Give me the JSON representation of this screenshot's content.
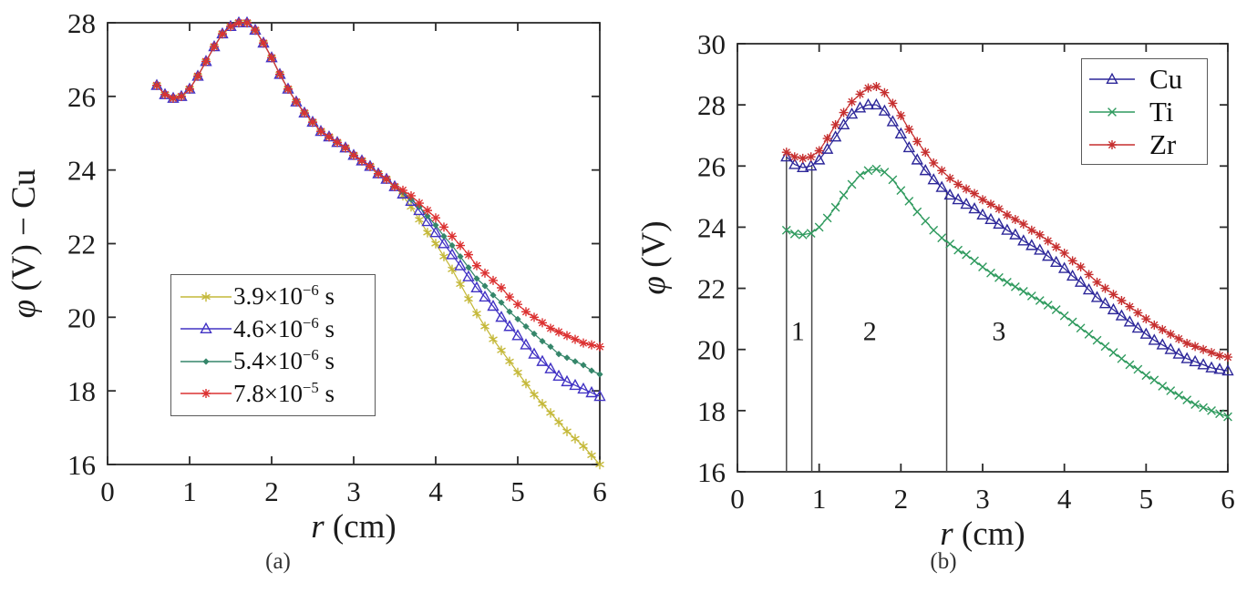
{
  "figure": {
    "captions": {
      "a": "(a)",
      "b": "(b)"
    }
  },
  "chart_data": [
    {
      "panel": "a",
      "type": "line",
      "title": "",
      "xlabel": {
        "var": "r",
        "rest": " (cm)"
      },
      "ylabel": {
        "var": "φ",
        "rest": " (V) − Cu"
      },
      "xlim": [
        0,
        6
      ],
      "ylim": [
        16,
        28
      ],
      "xticks": [
        0,
        1,
        2,
        3,
        4,
        5,
        6
      ],
      "yticks": [
        16,
        18,
        20,
        22,
        24,
        26,
        28
      ],
      "grid": false,
      "legend_position": "lower-left",
      "x_start": 0.6,
      "x_step": 0.1,
      "series": [
        {
          "name": "3.9e-6 s",
          "legend_base": "3.9×10",
          "legend_exp": "−6",
          "legend_suffix": " s",
          "color": "#c4b838",
          "marker": "star6",
          "values": [
            26.3,
            26.05,
            25.95,
            26.0,
            26.2,
            26.55,
            26.95,
            27.35,
            27.7,
            27.9,
            28.0,
            28.0,
            27.8,
            27.45,
            27.05,
            26.6,
            26.2,
            25.85,
            25.55,
            25.3,
            25.05,
            24.9,
            24.75,
            24.6,
            24.4,
            24.25,
            24.1,
            23.9,
            23.75,
            23.55,
            23.3,
            23.0,
            22.65,
            22.3,
            22.0,
            21.65,
            21.3,
            20.9,
            20.5,
            20.1,
            19.75,
            19.4,
            19.1,
            18.8,
            18.5,
            18.2,
            17.9,
            17.65,
            17.4,
            17.15,
            16.9,
            16.7,
            16.5,
            16.25,
            16.0
          ]
        },
        {
          "name": "4.6e-6 s",
          "legend_base": "4.6×10",
          "legend_exp": "−6",
          "legend_suffix": " s",
          "color": "#4132c4",
          "marker": "triangle",
          "values": [
            26.3,
            26.05,
            25.95,
            26.0,
            26.2,
            26.55,
            26.95,
            27.35,
            27.7,
            27.9,
            28.0,
            28.0,
            27.8,
            27.45,
            27.05,
            26.6,
            26.2,
            25.85,
            25.55,
            25.3,
            25.05,
            24.9,
            24.75,
            24.6,
            24.4,
            24.25,
            24.1,
            23.9,
            23.75,
            23.55,
            23.35,
            23.15,
            22.9,
            22.6,
            22.3,
            22.0,
            21.7,
            21.4,
            21.1,
            20.8,
            20.55,
            20.3,
            20.0,
            19.75,
            19.5,
            19.25,
            19.0,
            18.8,
            18.6,
            18.4,
            18.25,
            18.15,
            18.05,
            17.95,
            17.85
          ]
        },
        {
          "name": "5.4e-6 s",
          "legend_base": "5.4×10",
          "legend_exp": "−6",
          "legend_suffix": " s",
          "color": "#35866a",
          "marker": "diamond",
          "values": [
            26.3,
            26.05,
            25.95,
            26.0,
            26.2,
            26.55,
            26.95,
            27.35,
            27.7,
            27.9,
            28.0,
            28.0,
            27.8,
            27.45,
            27.05,
            26.6,
            26.2,
            25.85,
            25.55,
            25.3,
            25.05,
            24.9,
            24.75,
            24.6,
            24.4,
            24.25,
            24.1,
            23.9,
            23.75,
            23.55,
            23.4,
            23.2,
            23.0,
            22.75,
            22.5,
            22.2,
            21.95,
            21.65,
            21.35,
            21.05,
            20.85,
            20.6,
            20.4,
            20.15,
            19.95,
            19.75,
            19.55,
            19.35,
            19.2,
            19.0,
            18.9,
            18.8,
            18.7,
            18.55,
            18.45
          ]
        },
        {
          "name": "7.8e-5 s",
          "legend_base": "7.8×10",
          "legend_exp": "−5",
          "legend_suffix": " s",
          "color": "#dc3232",
          "marker": "asterisk",
          "values": [
            26.3,
            26.05,
            25.95,
            26.0,
            26.2,
            26.55,
            26.95,
            27.35,
            27.7,
            27.9,
            28.0,
            28.0,
            27.8,
            27.45,
            27.05,
            26.6,
            26.2,
            25.85,
            25.55,
            25.3,
            25.05,
            24.9,
            24.75,
            24.6,
            24.4,
            24.25,
            24.1,
            23.9,
            23.75,
            23.55,
            23.45,
            23.3,
            23.1,
            22.9,
            22.7,
            22.45,
            22.2,
            21.95,
            21.7,
            21.4,
            21.2,
            21.0,
            20.8,
            20.55,
            20.35,
            20.15,
            20.0,
            19.85,
            19.7,
            19.6,
            19.5,
            19.4,
            19.3,
            19.25,
            19.2
          ]
        }
      ]
    },
    {
      "panel": "b",
      "type": "line",
      "title": "",
      "xlabel": {
        "var": "r",
        "rest": " (cm)"
      },
      "ylabel": {
        "var": "φ",
        "rest": " (V)"
      },
      "xlim": [
        0,
        6
      ],
      "ylim": [
        16,
        30
      ],
      "xticks": [
        0,
        1,
        2,
        3,
        4,
        5,
        6
      ],
      "yticks": [
        16,
        18,
        20,
        22,
        24,
        26,
        28,
        30
      ],
      "grid": false,
      "legend_position": "upper-right",
      "x_start": 0.6,
      "x_step": 0.1,
      "vlines": [
        {
          "x": 0.6,
          "y_from": 16,
          "y_to": 26.35
        },
        {
          "x": 0.91,
          "y_from": 16,
          "y_to": 26.0
        },
        {
          "x": 2.56,
          "y_from": 16,
          "y_to": 25.2
        }
      ],
      "annotations": [
        {
          "text": "1",
          "x": 0.74,
          "y": 20.3
        },
        {
          "text": "2",
          "x": 1.62,
          "y": 20.3
        },
        {
          "text": "3",
          "x": 3.2,
          "y": 20.3
        }
      ],
      "series": [
        {
          "name": "Cu",
          "label": "Cu",
          "color": "#2c2699",
          "marker": "triangle",
          "values": [
            26.3,
            26.05,
            25.95,
            26.0,
            26.2,
            26.55,
            26.95,
            27.35,
            27.7,
            27.9,
            28.0,
            28.0,
            27.8,
            27.45,
            27.05,
            26.6,
            26.2,
            25.85,
            25.55,
            25.3,
            25.05,
            24.9,
            24.75,
            24.6,
            24.4,
            24.25,
            24.1,
            23.9,
            23.75,
            23.55,
            23.4,
            23.25,
            23.05,
            22.85,
            22.65,
            22.4,
            22.2,
            21.95,
            21.7,
            21.5,
            21.3,
            21.1,
            20.9,
            20.7,
            20.5,
            20.3,
            20.15,
            20.0,
            19.85,
            19.7,
            19.6,
            19.5,
            19.4,
            19.35,
            19.3
          ]
        },
        {
          "name": "Ti",
          "label": "Ti",
          "color": "#2f9a5e",
          "marker": "x",
          "values": [
            23.9,
            23.78,
            23.75,
            23.8,
            24.0,
            24.3,
            24.65,
            25.05,
            25.4,
            25.7,
            25.85,
            25.9,
            25.8,
            25.55,
            25.2,
            24.85,
            24.5,
            24.2,
            23.9,
            23.65,
            23.45,
            23.25,
            23.1,
            22.9,
            22.7,
            22.5,
            22.35,
            22.2,
            22.05,
            21.9,
            21.75,
            21.6,
            21.45,
            21.3,
            21.1,
            20.9,
            20.7,
            20.5,
            20.3,
            20.1,
            19.9,
            19.7,
            19.5,
            19.35,
            19.15,
            19.0,
            18.8,
            18.65,
            18.5,
            18.35,
            18.2,
            18.1,
            18.0,
            17.9,
            17.8
          ]
        },
        {
          "name": "Zr",
          "label": "Zr",
          "color": "#c62f2f",
          "marker": "asterisk",
          "values": [
            26.45,
            26.3,
            26.25,
            26.3,
            26.5,
            26.9,
            27.35,
            27.75,
            28.1,
            28.35,
            28.55,
            28.6,
            28.4,
            28.05,
            27.65,
            27.2,
            26.8,
            26.45,
            26.1,
            25.85,
            25.6,
            25.4,
            25.25,
            25.1,
            24.9,
            24.75,
            24.6,
            24.4,
            24.25,
            24.1,
            23.9,
            23.75,
            23.55,
            23.35,
            23.15,
            22.9,
            22.7,
            22.45,
            22.2,
            22.0,
            21.8,
            21.6,
            21.4,
            21.2,
            21.0,
            20.8,
            20.65,
            20.5,
            20.35,
            20.2,
            20.1,
            20.0,
            19.9,
            19.8,
            19.75
          ]
        }
      ]
    }
  ]
}
